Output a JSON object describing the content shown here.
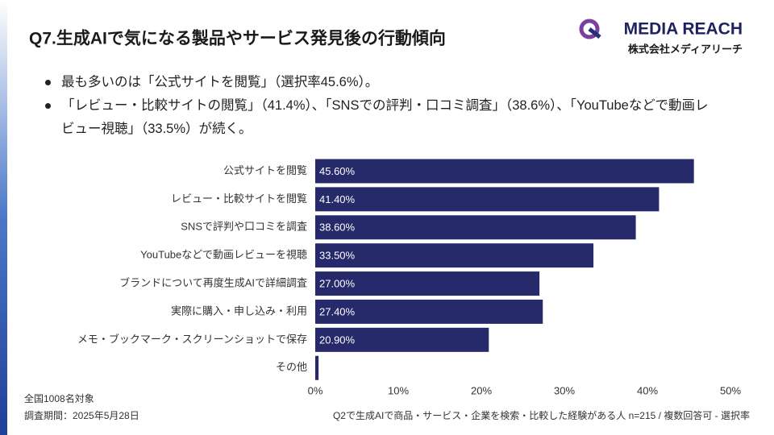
{
  "chart_data": {
    "type": "bar",
    "orientation": "horizontal",
    "title": "Q7.生成AIで気になる製品やサービス発見後の行動傾向",
    "logo": {
      "name": "MEDIA REACH",
      "company": "株式会社メディアリーチ"
    },
    "bullets": [
      "最も多いのは「公式サイトを閲覧」（選択率45.6%）。",
      "「レビュー・比較サイトの閲覧」（41.4%）、「SNSでの評判・口コミ調査」（38.6%）、「YouTubeなどで動画レビュー視聴」（33.5%）が続く。"
    ],
    "categories": [
      "公式サイトを閲覧",
      "レビュー・比較サイトを閲覧",
      "SNSで評判や口コミを調査",
      "YouTubeなどで動画レビューを視聴",
      "ブランドについて再度生成AIで詳細調査",
      "実際に購入・申し込み・利用",
      "メモ・ブックマーク・スクリーンショットで保存",
      "その他"
    ],
    "values": [
      45.6,
      41.4,
      38.6,
      33.5,
      27.0,
      27.4,
      20.9,
      0.4
    ],
    "value_labels": [
      "45.60%",
      "41.40%",
      "38.60%",
      "33.50%",
      "27.00%",
      "27.40%",
      "20.90%",
      null
    ],
    "color": "#262a6b",
    "xlim": [
      0,
      50
    ],
    "xticks": [
      {
        "value": 0,
        "label": "0%"
      },
      {
        "value": 10,
        "label": "10%"
      },
      {
        "value": 20,
        "label": "20%"
      },
      {
        "value": 30,
        "label": "30%"
      },
      {
        "value": 40,
        "label": "40%"
      },
      {
        "value": 50,
        "label": "50%"
      }
    ],
    "notes": [
      "全国1008名対象",
      "調査期間：2025年5月28日",
      "Q2で生成AIで商品・サービス・企業を検索・比較した経験がある人 n=215 / 複数回答可 - 選択率"
    ]
  }
}
